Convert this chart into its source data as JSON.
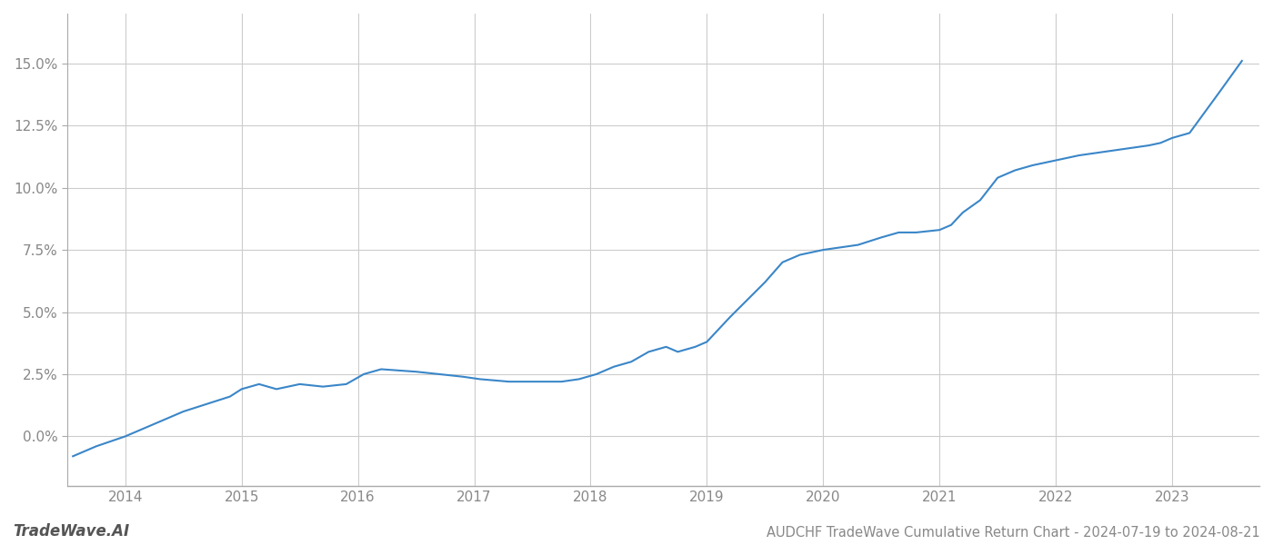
{
  "title": "AUDCHF TradeWave Cumulative Return Chart - 2024-07-19 to 2024-08-21",
  "watermark": "TradeWave.AI",
  "line_color": "#3a86c8",
  "background_color": "#ffffff",
  "grid_color": "#cccccc",
  "x_years": [
    2014,
    2015,
    2016,
    2017,
    2018,
    2019,
    2020,
    2021,
    2022,
    2023
  ],
  "x_data": [
    2013.55,
    2013.75,
    2014.0,
    2014.2,
    2014.5,
    2014.7,
    2014.9,
    2015.0,
    2015.15,
    2015.3,
    2015.5,
    2015.7,
    2015.9,
    2016.05,
    2016.2,
    2016.5,
    2016.7,
    2016.9,
    2017.05,
    2017.3,
    2017.6,
    2017.75,
    2017.9,
    2018.05,
    2018.2,
    2018.35,
    2018.5,
    2018.65,
    2018.75,
    2018.9,
    2019.0,
    2019.1,
    2019.2,
    2019.35,
    2019.5,
    2019.65,
    2019.8,
    2020.0,
    2020.15,
    2020.3,
    2020.5,
    2020.65,
    2020.8,
    2021.0,
    2021.1,
    2021.2,
    2021.35,
    2021.5,
    2021.65,
    2021.8,
    2021.9,
    2022.0,
    2022.2,
    2022.35,
    2022.5,
    2022.65,
    2022.8,
    2022.9,
    2023.0,
    2023.15,
    2023.4,
    2023.6
  ],
  "y_data": [
    -0.008,
    -0.004,
    0.0,
    0.004,
    0.01,
    0.013,
    0.016,
    0.019,
    0.021,
    0.019,
    0.021,
    0.02,
    0.021,
    0.025,
    0.027,
    0.026,
    0.025,
    0.024,
    0.023,
    0.022,
    0.022,
    0.022,
    0.023,
    0.025,
    0.028,
    0.03,
    0.034,
    0.036,
    0.034,
    0.036,
    0.038,
    0.043,
    0.048,
    0.055,
    0.062,
    0.07,
    0.073,
    0.075,
    0.076,
    0.077,
    0.08,
    0.082,
    0.082,
    0.083,
    0.085,
    0.09,
    0.095,
    0.104,
    0.107,
    0.109,
    0.11,
    0.111,
    0.113,
    0.114,
    0.115,
    0.116,
    0.117,
    0.118,
    0.12,
    0.122,
    0.138,
    0.151
  ],
  "ylim": [
    -0.02,
    0.17
  ],
  "yticks": [
    0.0,
    0.025,
    0.05,
    0.075,
    0.1,
    0.125,
    0.15
  ],
  "xlim": [
    2013.5,
    2023.75
  ],
  "title_fontsize": 10.5,
  "watermark_fontsize": 12,
  "axis_label_color": "#999999",
  "tick_label_color": "#888888",
  "spine_color": "#aaaaaa"
}
